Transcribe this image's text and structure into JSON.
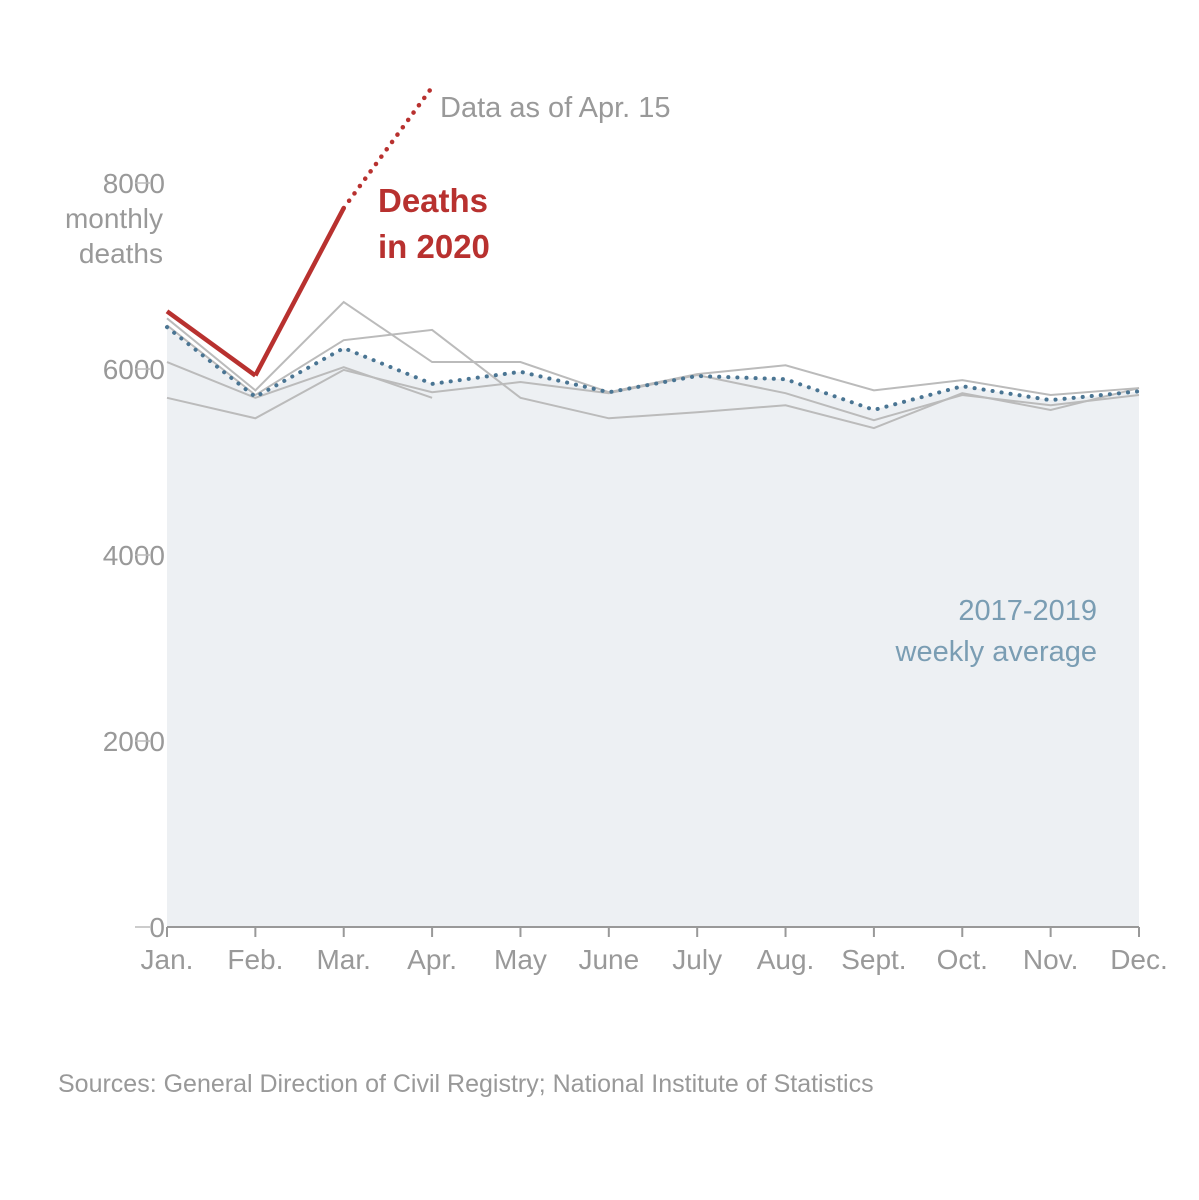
{
  "chart_data": {
    "type": "line",
    "categories": [
      "Jan.",
      "Feb.",
      "Mar.",
      "Apr.",
      "May",
      "June",
      "July",
      "Aug.",
      "Sept.",
      "Oct.",
      "Nov.",
      "Dec."
    ],
    "ylim": [
      0,
      8000
    ],
    "yticks": [
      0,
      2000,
      4000,
      6000,
      8000
    ],
    "y_label": [
      "monthly",
      "deaths"
    ],
    "series": [
      {
        "color": "#bbbbbb",
        "values": [
          6545,
          5770,
          6720,
          6075,
          6075,
          5750,
          5945,
          6040,
          5770,
          5880,
          5720,
          5795
        ]
      },
      {
        "color": "#bbbbbb",
        "values": [
          6470,
          5720,
          6310,
          6420,
          5690,
          5470,
          5535,
          5610,
          5365,
          5740,
          5560,
          5795
        ]
      },
      {
        "color": "#bbbbbb",
        "values": [
          5690,
          5470,
          5990,
          5750,
          5860,
          5740,
          5935,
          5740,
          5450,
          5720,
          5610,
          5720
        ]
      },
      {
        "color": "#bbbbbb",
        "values": [
          6075,
          5690,
          6020,
          5690,
          null,
          null,
          null,
          null,
          null,
          null,
          null,
          null
        ]
      },
      {
        "color": "#4a7593",
        "style": "dotted",
        "area_fill": "#edf0f3",
        "values": [
          6450,
          5700,
          6225,
          5840,
          5970,
          5750,
          5925,
          5890,
          5560,
          5815,
          5665,
          5760
        ]
      },
      {
        "color": "#b8312f",
        "values": [
          6620,
          5930,
          7730,
          9030,
          null,
          null,
          null,
          null,
          null,
          null,
          null,
          null
        ],
        "segment_styles": [
          "solid",
          "solid",
          "dotted"
        ]
      }
    ],
    "annotations": [
      {
        "lines": [
          "Data as of Apr. 15"
        ],
        "color": "#999999"
      },
      {
        "lines": [
          "Deaths",
          "in 2020"
        ],
        "color": "#b8312f"
      },
      {
        "lines": [
          "2017-2019",
          "weekly average"
        ],
        "color": "#7a9db3"
      }
    ],
    "source": "Sources: General Direction of Civil Registry; National Institute of Statistics"
  }
}
